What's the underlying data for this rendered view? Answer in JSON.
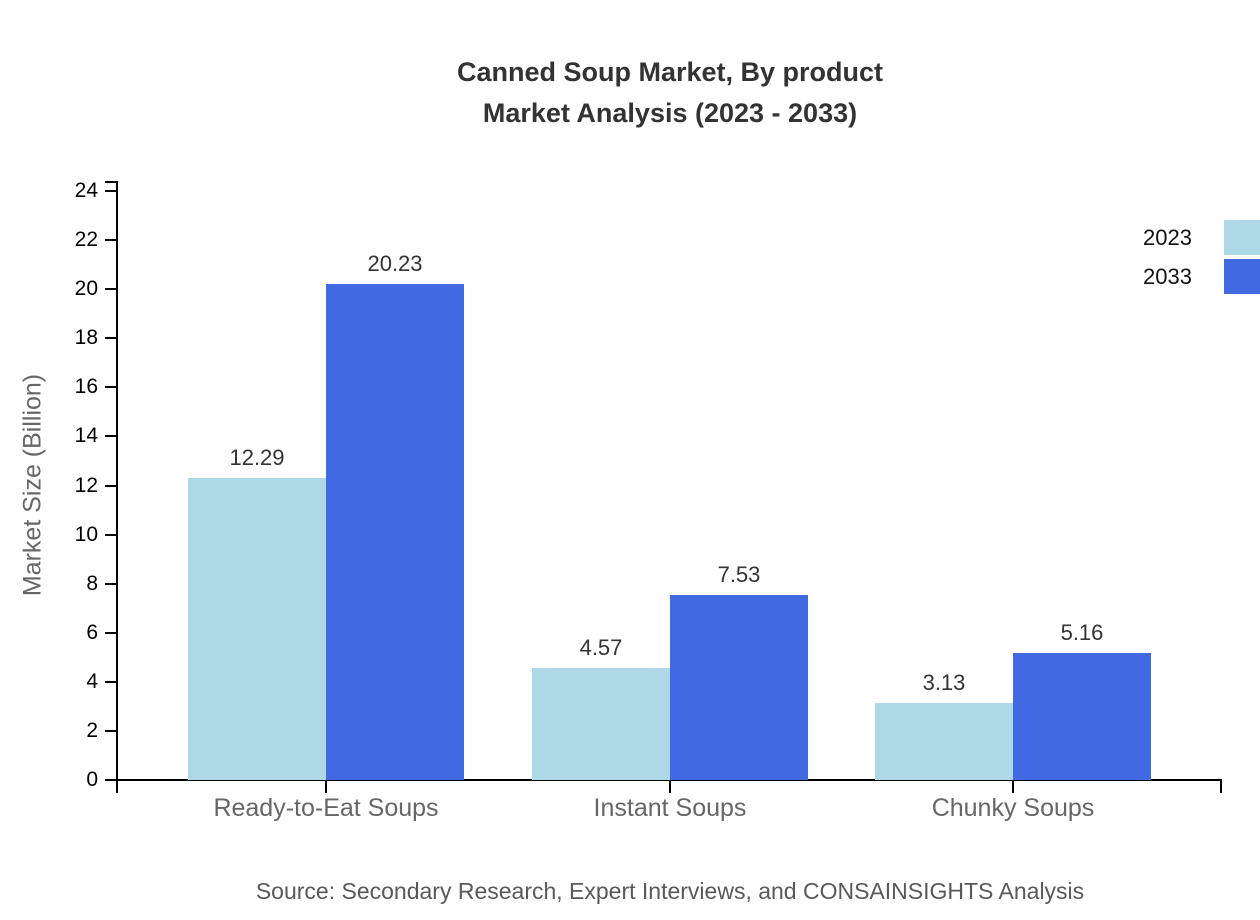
{
  "chart_data": {
    "type": "bar",
    "title": "Canned Soup Market, By product",
    "subtitle": "Market Analysis (2023 - 2033)",
    "ylabel": "Market Size (Billion)",
    "xlabel": "",
    "categories": [
      "Ready-to-Eat Soups",
      "Instant Soups",
      "Chunky Soups"
    ],
    "series": [
      {
        "name": "2023",
        "color": "#ADD8E6",
        "values": [
          12.29,
          4.57,
          3.13
        ]
      },
      {
        "name": "2033",
        "color": "#4169E1",
        "values": [
          20.23,
          7.53,
          5.16
        ]
      }
    ],
    "value_labels": [
      [
        "12.29",
        "4.57",
        "3.13"
      ],
      [
        "20.23",
        "7.53",
        "5.16"
      ]
    ],
    "ylim": [
      0,
      24
    ],
    "ytick_step": 2,
    "ytick_labels": [
      "0",
      "2",
      "4",
      "6",
      "8",
      "10",
      "12",
      "14",
      "16",
      "18",
      "20",
      "22",
      "24"
    ],
    "grid": false,
    "legend_position": "top-right"
  },
  "legend": {
    "items": [
      {
        "label": "2023",
        "color": "#ADD8E6"
      },
      {
        "label": "2033",
        "color": "#4169E1"
      }
    ]
  },
  "source": "Source: Secondary Research, Expert Interviews, and CONSAINSIGHTS Analysis",
  "colors": {
    "series_2023": "#ADD8E6",
    "series_2033": "#4169E1",
    "axis": "#000000",
    "title_text": "#333333",
    "muted_text": "#666666"
  }
}
